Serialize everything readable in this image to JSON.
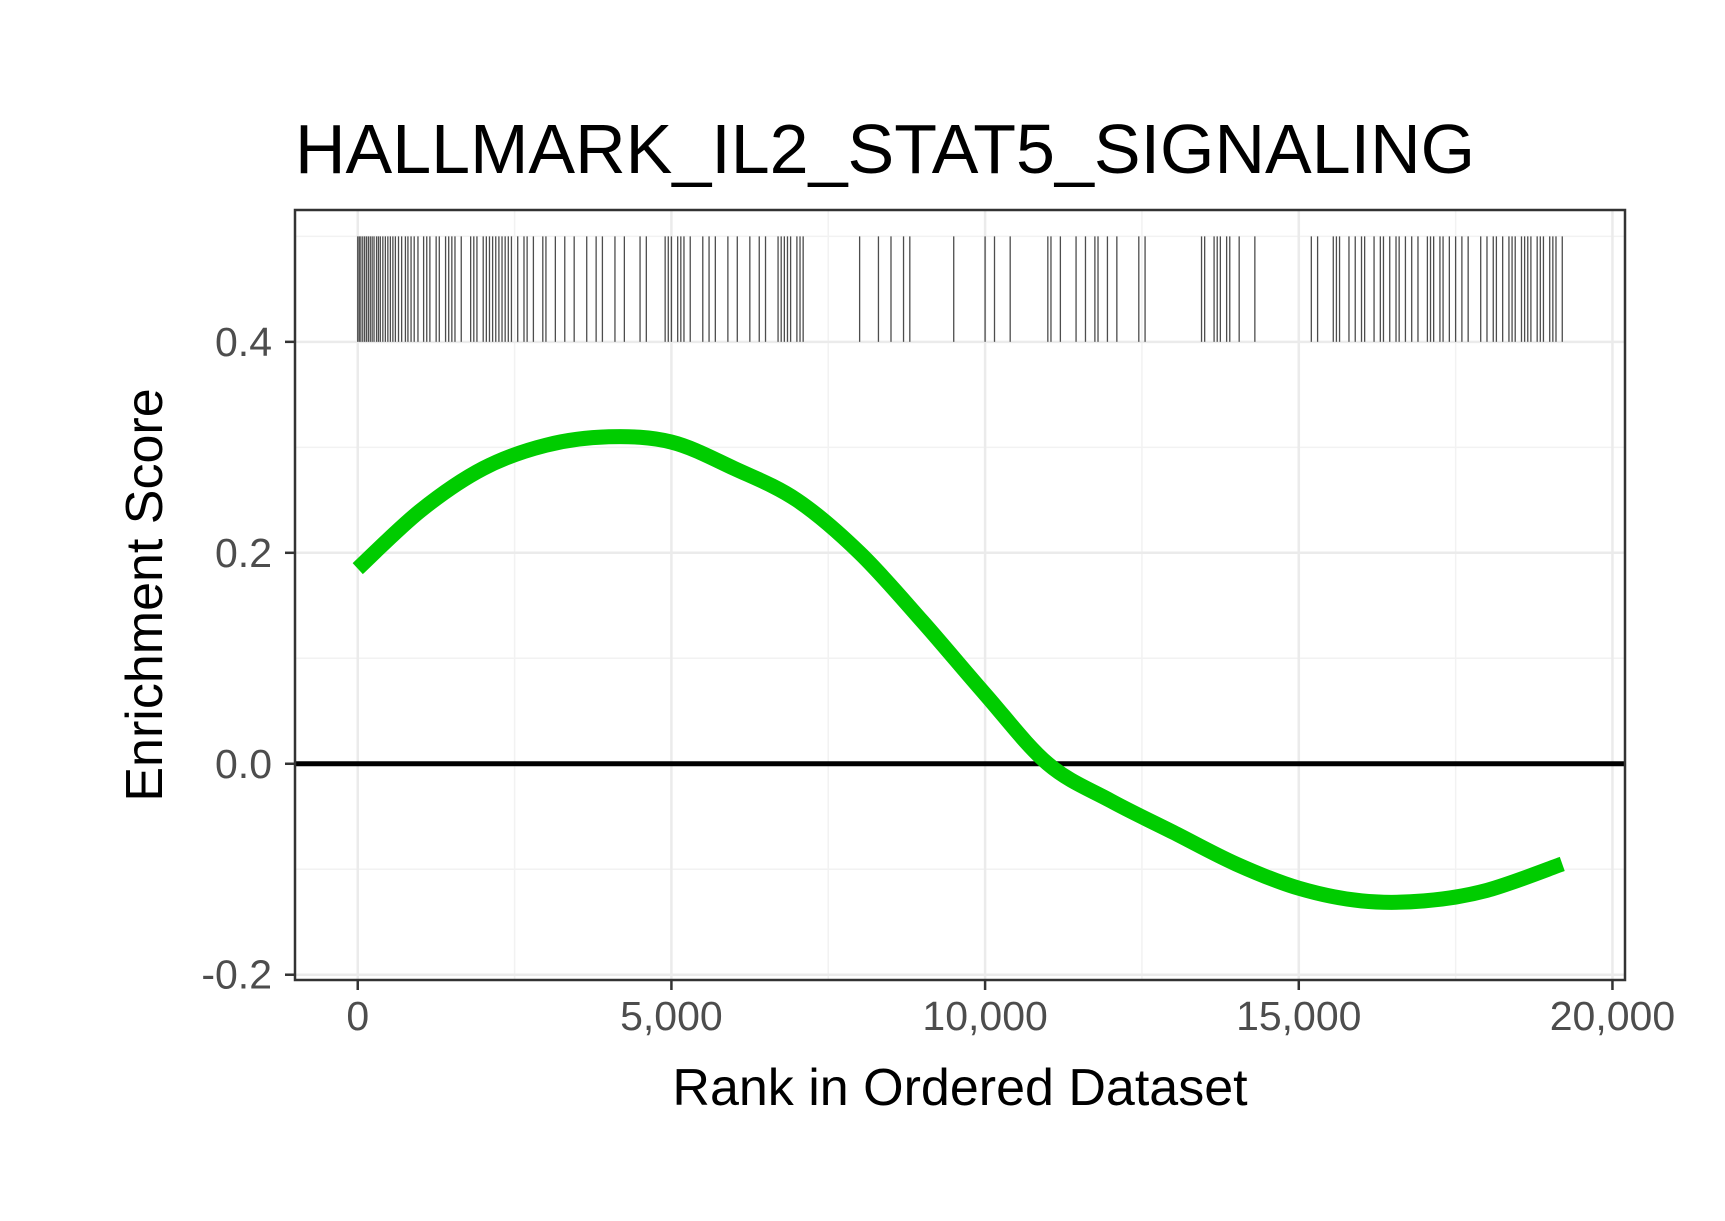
{
  "chart_data": {
    "type": "line",
    "title": "HALLMARK_IL2_STAT5_SIGNALING",
    "xlabel": "Rank in Ordered Dataset",
    "ylabel": "Enrichment Score",
    "xlim": [
      -1000,
      20200
    ],
    "ylim": [
      -0.205,
      0.525
    ],
    "x_ticks": [
      0,
      5000,
      10000,
      15000,
      20000
    ],
    "x_tick_labels": [
      "0",
      "5,000",
      "10,000",
      "15,000",
      "20,000"
    ],
    "y_ticks": [
      -0.2,
      0.0,
      0.2,
      0.4
    ],
    "y_tick_labels": [
      "-0.2",
      "0.0",
      "0.2",
      "0.4"
    ],
    "grid": true,
    "reference_line": {
      "y": 0.0,
      "color": "#000000"
    },
    "series": [
      {
        "color": "#00cc00",
        "x": [
          0,
          1000,
          2000,
          3000,
          4000,
          5000,
          6000,
          7000,
          8000,
          9000,
          10000,
          11000,
          12000,
          13000,
          14000,
          15000,
          16000,
          17000,
          18000,
          19200
        ],
        "y": [
          0.185,
          0.24,
          0.28,
          0.302,
          0.31,
          0.305,
          0.28,
          0.25,
          0.2,
          0.135,
          0.066,
          0.0,
          -0.035,
          -0.065,
          -0.095,
          -0.118,
          -0.13,
          -0.13,
          -0.12,
          -0.095
        ]
      }
    ],
    "gene_hits": {
      "color": "#4d4d4d",
      "y_range": [
        0.4,
        0.5
      ],
      "positions": [
        0,
        25,
        50,
        80,
        110,
        140,
        170,
        200,
        230,
        260,
        300,
        330,
        360,
        400,
        440,
        480,
        520,
        560,
        600,
        650,
        700,
        760,
        800,
        850,
        900,
        960,
        1050,
        1100,
        1150,
        1250,
        1300,
        1400,
        1450,
        1500,
        1550,
        1650,
        1800,
        1850,
        1900,
        2000,
        2050,
        2100,
        2150,
        2200,
        2250,
        2300,
        2350,
        2400,
        2450,
        2550,
        2650,
        2700,
        2800,
        2950,
        3000,
        3150,
        3300,
        3450,
        3650,
        3800,
        3900,
        4100,
        4250,
        4500,
        4600,
        4900,
        4950,
        5000,
        5100,
        5150,
        5200,
        5300,
        5500,
        5600,
        5700,
        5900,
        6050,
        6250,
        6400,
        6500,
        6700,
        6750,
        6800,
        6850,
        6900,
        7000,
        7050,
        7100,
        8000,
        8300,
        8500,
        8700,
        8800,
        9500,
        10000,
        10150,
        10400,
        11000,
        11050,
        11200,
        11450,
        11600,
        11750,
        11800,
        11950,
        12100,
        12450,
        12550,
        13450,
        13500,
        13650,
        13700,
        13750,
        13850,
        13900,
        14050,
        14300,
        15200,
        15300,
        15550,
        15600,
        15650,
        15800,
        15900,
        16000,
        16050,
        16200,
        16300,
        16350,
        16450,
        16550,
        16600,
        16700,
        16800,
        16900,
        17050,
        17100,
        17150,
        17250,
        17300,
        17400,
        17500,
        17600,
        17700,
        17900,
        18000,
        18100,
        18150,
        18250,
        18350,
        18400,
        18450,
        18550,
        18600,
        18650,
        18700,
        18800,
        18850,
        18900,
        19000,
        19050,
        19100,
        19200
      ]
    }
  }
}
